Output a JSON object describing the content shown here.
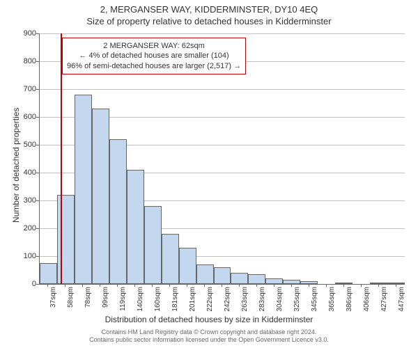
{
  "title_main": "2, MERGANSER WAY, KIDDERMINSTER, DY10 4EQ",
  "title_sub": "Size of property relative to detached houses in Kidderminster",
  "chart": {
    "type": "histogram",
    "y_label": "Number of detached properties",
    "x_label": "Distribution of detached houses by size in Kidderminster",
    "ylim": [
      0,
      900
    ],
    "y_ticks": [
      0,
      100,
      200,
      300,
      400,
      500,
      600,
      700,
      800,
      900
    ],
    "x_ticks": [
      "37sqm",
      "58sqm",
      "78sqm",
      "99sqm",
      "119sqm",
      "140sqm",
      "160sqm",
      "181sqm",
      "201sqm",
      "222sqm",
      "242sqm",
      "263sqm",
      "283sqm",
      "304sqm",
      "325sqm",
      "345sqm",
      "365sqm",
      "386sqm",
      "406sqm",
      "427sqm",
      "447sqm"
    ],
    "bars": [
      75,
      320,
      680,
      630,
      520,
      410,
      280,
      180,
      130,
      70,
      60,
      40,
      35,
      20,
      15,
      10,
      0,
      5,
      0,
      3,
      3
    ],
    "bar_color": "#c3d7ee",
    "bar_border": "#666666",
    "grid_color": "#c0c0c0",
    "background_color": "#ffffff",
    "marker": {
      "position_x": 62,
      "x_min": 37,
      "x_step": 20.5,
      "color": "#c00000"
    },
    "info_box": {
      "border_color": "#c00000",
      "line1": "2 MERGANSER WAY: 62sqm",
      "line2": "← 4% of detached houses are smaller (104)",
      "line3": "96% of semi-detached houses are larger (2,517) →"
    }
  },
  "footer": {
    "line1": "Contains HM Land Registry data © Crown copyright and database right 2024.",
    "line2": "Contains public sector information licensed under the Open Government Licence v3.0."
  }
}
